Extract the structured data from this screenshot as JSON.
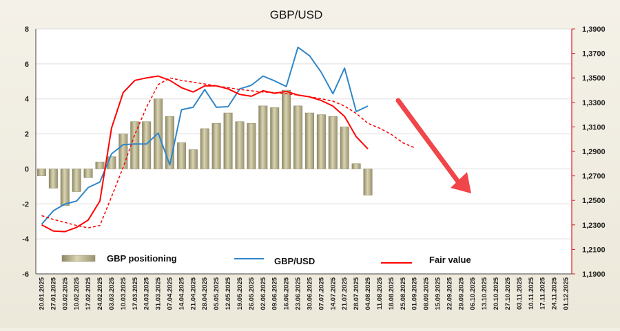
{
  "chart_data": {
    "type": "bar+line",
    "title": "GBP/USD",
    "x_labels": [
      "20.01.2025",
      "27.01.2025",
      "03.02.2025",
      "10.02.2025",
      "17.02.2025",
      "24.02.2025",
      "03.03.2025",
      "10.03.2025",
      "17.03.2025",
      "24.03.2025",
      "31.03.2025",
      "07.04.2025",
      "14.04.2025",
      "21.04.2025",
      "28.04.2025",
      "05.05.2025",
      "12.05.2025",
      "19.05.2025",
      "26.05.2025",
      "02.06.2025",
      "09.06.2025",
      "16.06.2025",
      "23.06.2025",
      "30.06.2025",
      "07.07.2025",
      "14.07.2025",
      "21.07.2025",
      "28.07.2025",
      "04.08.2025",
      "11.08.2025",
      "18.08.2025",
      "25.08.2025",
      "01.09.2025",
      "08.09.2025",
      "15.09.2025",
      "22.09.2025",
      "29.09.2025",
      "06.10.2025",
      "13.10.2025",
      "20.10.2025",
      "27.10.2025",
      "03.11.2025",
      "10.11.2025",
      "17.11.2025",
      "24.11.2025",
      "01.12.2025"
    ],
    "left_axis": {
      "min": -6,
      "max": 8,
      "step": 2,
      "ticks": [
        "-6",
        "-4",
        "-2",
        "0",
        "2",
        "4",
        "6",
        "8"
      ]
    },
    "right_axis": {
      "min": 1.19,
      "max": 1.39,
      "step": 0.02,
      "ticks": [
        "1,1900",
        "1,2100",
        "1,2300",
        "1,2500",
        "1,2700",
        "1,2900",
        "1,3100",
        "1,3300",
        "1,3500",
        "1,3700",
        "1,3900"
      ]
    },
    "series": [
      {
        "name": "GBP positioning",
        "kind": "bar",
        "axis": "left",
        "color": "#b8b18a",
        "values": [
          -0.4,
          -1.1,
          -2.1,
          -1.3,
          -0.5,
          0.4,
          0.7,
          2.0,
          2.7,
          2.7,
          4.0,
          3.0,
          1.5,
          1.1,
          2.3,
          2.6,
          3.2,
          2.7,
          2.6,
          3.6,
          3.5,
          4.5,
          3.6,
          3.2,
          3.1,
          3.0,
          2.4,
          0.3,
          -1.5
        ]
      },
      {
        "name": "GBP/USD",
        "kind": "line",
        "axis": "right",
        "color": "#2e86c8",
        "values": [
          1.2305,
          1.2415,
          1.247,
          1.2495,
          1.2605,
          1.265,
          1.288,
          1.2955,
          1.296,
          1.296,
          1.305,
          1.279,
          1.324,
          1.326,
          1.3405,
          1.326,
          1.3265,
          1.341,
          1.344,
          1.3515,
          1.3475,
          1.343,
          1.375,
          1.368,
          1.3545,
          1.337,
          1.358,
          1.3225,
          1.327
        ]
      },
      {
        "name": "Fair value",
        "kind": "line",
        "axis": "right",
        "color": "#ff0000",
        "values": [
          1.23,
          1.225,
          1.2245,
          1.228,
          1.234,
          1.2495,
          1.309,
          1.338,
          1.348,
          1.35,
          1.3515,
          1.348,
          1.342,
          1.3385,
          1.3435,
          1.3435,
          1.341,
          1.3365,
          1.335,
          1.3395,
          1.3375,
          1.339,
          1.336,
          1.3345,
          1.3315,
          1.327,
          1.3185,
          1.302,
          1.292
        ]
      },
      {
        "name": "",
        "kind": "dashed-line",
        "axis": "right",
        "color": "#ff0000",
        "values": [
          1.2375,
          1.2345,
          1.232,
          1.2295,
          1.2275,
          1.2295,
          1.253,
          1.277,
          1.304,
          1.326,
          1.3445,
          1.35,
          1.348,
          1.3465,
          1.345,
          1.3435,
          1.342,
          1.3405,
          1.3395,
          1.3385,
          1.338,
          1.337,
          1.336,
          1.3345,
          1.333,
          1.331,
          1.327,
          1.321,
          1.313,
          1.309,
          1.304,
          1.297,
          1.293
        ]
      }
    ],
    "legend": {
      "placement": "bottom",
      "items": [
        "GBP positioning",
        "GBP/USD",
        "Fair value"
      ]
    },
    "annotation": {
      "type": "arrow",
      "color": "#f0464a",
      "direction": "down-right"
    },
    "grid": true
  }
}
